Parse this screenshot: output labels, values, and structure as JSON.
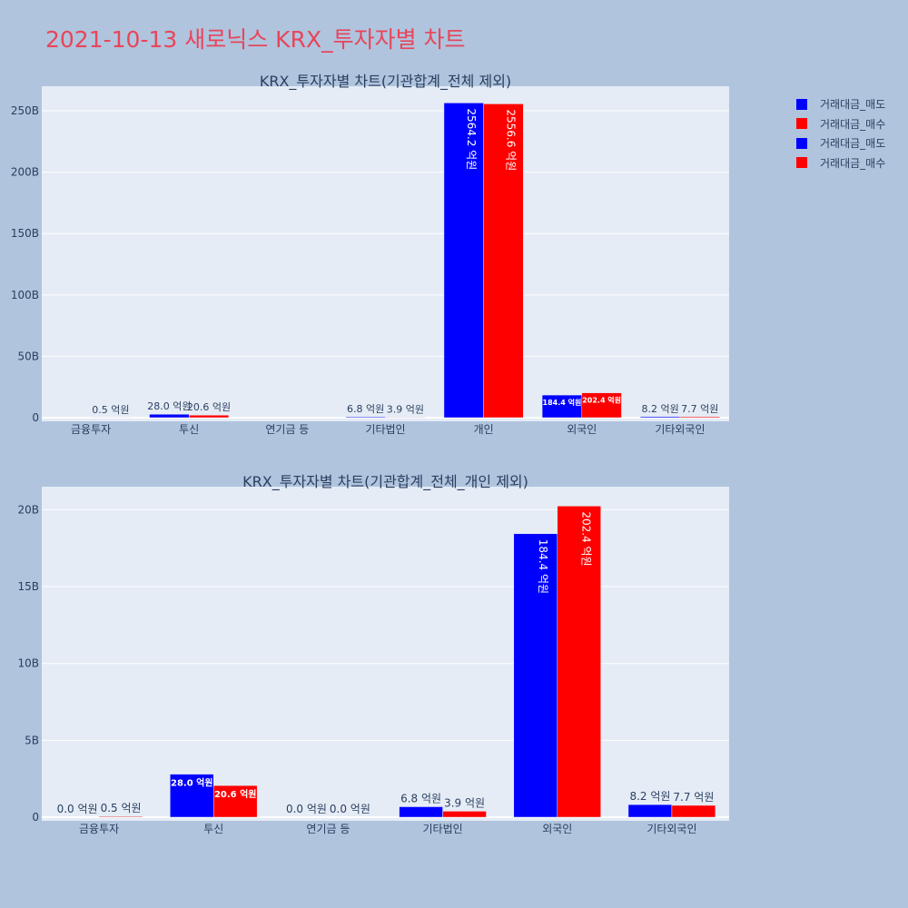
{
  "title": "2021-10-13 새로닉스 KRX_투자자별 차트",
  "legend": [
    {
      "label": "거래대금_매도",
      "color": "#0000ff"
    },
    {
      "label": "거래대금_매수",
      "color": "#ff0000"
    },
    {
      "label": "거래대금_매도",
      "color": "#0000ff"
    },
    {
      "label": "거래대금_매수",
      "color": "#ff0000"
    }
  ],
  "chart_data": [
    {
      "type": "bar",
      "title": "KRX_투자자별 차트(기관합계_전체 제외)",
      "categories": [
        "금융투자",
        "투신",
        "연기금 등",
        "기타법인",
        "개인",
        "외국인",
        "기타외국인"
      ],
      "ylim": [
        0,
        270
      ],
      "yunit": "B",
      "yticks": [
        0,
        50,
        100,
        150,
        200,
        250
      ],
      "ytick_labels": [
        "0",
        "50B",
        "100B",
        "150B",
        "200B",
        "250B"
      ],
      "series": [
        {
          "name": "거래대금_매도",
          "color": "#0000ff",
          "values": [
            0.0,
            2.8,
            0.0,
            0.68,
            256.42,
            18.44,
            0.82
          ],
          "labels": [
            "",
            "28.0 억원",
            "",
            "6.8 억원",
            "2564.2 억원",
            "184.4 억원",
            "8.2 억원"
          ]
        },
        {
          "name": "거래대금_매수",
          "color": "#ff0000",
          "values": [
            0.05,
            2.06,
            0.0,
            0.39,
            255.66,
            20.24,
            0.77
          ],
          "labels": [
            "0.5 억원",
            "20.6 억원",
            "",
            "3.9 억원",
            "2556.6 억원",
            "202.4 억원",
            "7.7 억원"
          ]
        }
      ]
    },
    {
      "type": "bar",
      "title": "KRX_투자자별 차트(기관합계_전체_개인 제외)",
      "categories": [
        "금융투자",
        "투신",
        "연기금 등",
        "기타법인",
        "외국인",
        "기타외국인"
      ],
      "ylim": [
        0,
        21.5
      ],
      "yunit": "B",
      "yticks": [
        0,
        5,
        10,
        15,
        20
      ],
      "ytick_labels": [
        "0",
        "5B",
        "10B",
        "15B",
        "20B"
      ],
      "series": [
        {
          "name": "거래대금_매도",
          "color": "#0000ff",
          "values": [
            0.0,
            2.8,
            0.0,
            0.68,
            18.44,
            0.82
          ],
          "labels": [
            "0.0 억원",
            "28.0 억원",
            "0.0 억원",
            "6.8 억원",
            "184.4 억원",
            "8.2 억원"
          ]
        },
        {
          "name": "거래대금_매수",
          "color": "#ff0000",
          "values": [
            0.05,
            2.06,
            0.0,
            0.39,
            20.24,
            0.77
          ],
          "labels": [
            "0.5 억원",
            "20.6 억원",
            "0.0 억원",
            "3.9 억원",
            "202.4 억원",
            "7.7 억원"
          ]
        }
      ]
    }
  ]
}
